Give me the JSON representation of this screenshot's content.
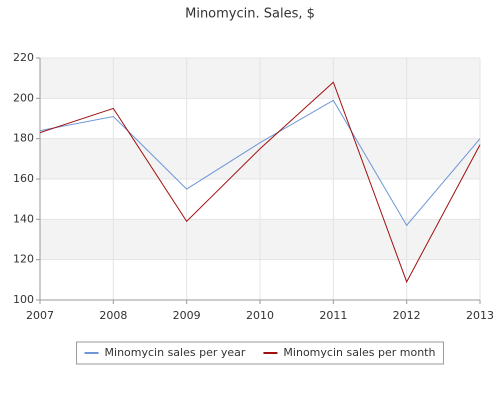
{
  "chart_data": {
    "type": "line",
    "title": "Minomycin. Sales, $",
    "x": [
      2007,
      2008,
      2009,
      2010,
      2011,
      2012,
      2013
    ],
    "series": [
      {
        "name": "Minomycin sales per year",
        "color": "#6f97d8",
        "values": [
          184,
          191,
          155,
          178,
          199,
          137,
          180
        ]
      },
      {
        "name": "Minomycin sales per month",
        "color": "#a01010",
        "values": [
          183,
          195,
          139,
          175,
          208,
          109,
          177
        ]
      }
    ],
    "xlim": [
      2007,
      2013
    ],
    "xticks": [
      2007,
      2008,
      2009,
      2010,
      2011,
      2012,
      2013
    ],
    "ylim": [
      100,
      220
    ],
    "yticks": [
      100,
      120,
      140,
      160,
      180,
      200,
      220
    ],
    "grid": true,
    "legend": "bottom"
  }
}
